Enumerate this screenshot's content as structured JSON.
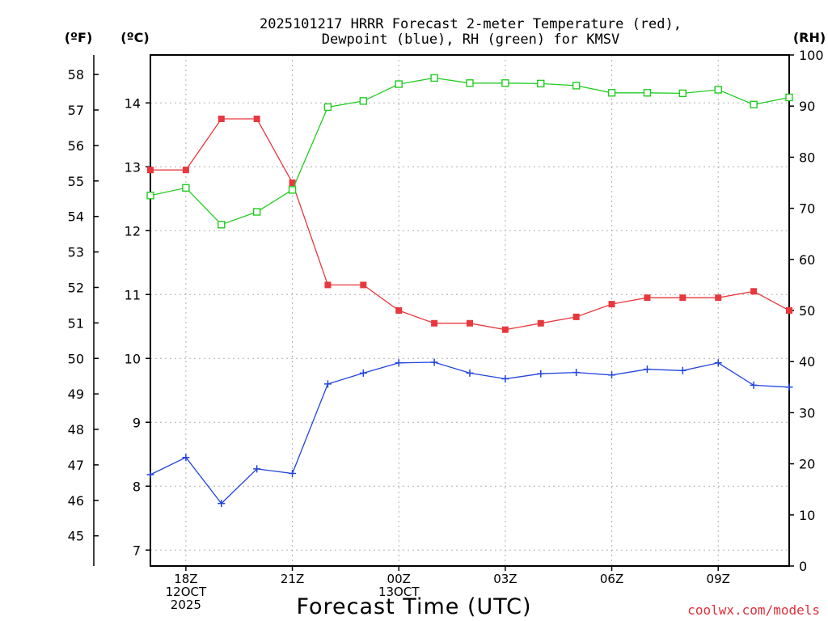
{
  "chart_data": {
    "type": "line",
    "title_line1": "2025101217 HRRR Forecast 2-meter Temperature (red),",
    "title_line2": "Dewpoint (blue), RH (green) for KMSV",
    "left_outer_axis_label": "(ºF)",
    "left_inner_axis_label": "(ºC)",
    "right_axis_label": "(RH)",
    "xlabel": "Forecast Time (UTC)",
    "credit": "coolwx.com/models",
    "x_ticks": [
      {
        "hour": 1,
        "lines": [
          "18Z",
          "12OCT",
          "2025"
        ]
      },
      {
        "hour": 4,
        "lines": [
          "21Z"
        ]
      },
      {
        "hour": 7,
        "lines": [
          "00Z",
          "13OCT"
        ]
      },
      {
        "hour": 10,
        "lines": [
          "03Z"
        ]
      },
      {
        "hour": 13,
        "lines": [
          "06Z"
        ]
      },
      {
        "hour": 16,
        "lines": [
          "09Z"
        ]
      }
    ],
    "x_range": [
      0,
      18
    ],
    "celsius_range": [
      6.75,
      14.75
    ],
    "celsius_ticks": [
      "7",
      "8",
      "9",
      "10",
      "11",
      "12",
      "13",
      "14"
    ],
    "fahrenheit_ticks": [
      "45",
      "46",
      "47",
      "48",
      "49",
      "50",
      "51",
      "52",
      "53",
      "54",
      "55",
      "56",
      "57",
      "58"
    ],
    "rh_range": [
      0,
      100
    ],
    "rh_ticks": [
      "0",
      "10",
      "20",
      "30",
      "40",
      "50",
      "60",
      "70",
      "80",
      "90",
      "100"
    ],
    "colors": {
      "temperature": "#e8383d",
      "dewpoint": "#2244dd",
      "rh": "#22cc22",
      "grid": "#b0b0b0",
      "credit": "#e0303a"
    },
    "series": [
      {
        "name": "Temperature (C)",
        "axis": "celsius",
        "marker": "filled-square",
        "x": [
          0,
          1,
          2,
          3,
          4,
          5,
          6,
          7,
          8,
          9,
          10,
          11,
          12,
          13,
          14,
          15,
          16,
          17,
          18
        ],
        "values": [
          12.95,
          12.95,
          13.75,
          13.75,
          12.75,
          11.15,
          11.15,
          10.75,
          10.55,
          10.55,
          10.45,
          10.55,
          10.65,
          10.85,
          10.95,
          10.95,
          10.95,
          11.05,
          10.75
        ]
      },
      {
        "name": "Dewpoint (C)",
        "axis": "celsius",
        "marker": "plus",
        "x": [
          0,
          1,
          2,
          3,
          4,
          5,
          6,
          7,
          8,
          9,
          10,
          11,
          12,
          13,
          14,
          15,
          16,
          17,
          18
        ],
        "values": [
          8.18,
          8.45,
          7.73,
          8.27,
          8.2,
          9.6,
          9.77,
          9.93,
          9.94,
          9.77,
          9.68,
          9.76,
          9.78,
          9.74,
          9.83,
          9.81,
          9.93,
          9.58,
          9.55
        ]
      },
      {
        "name": "RH (%)",
        "axis": "rh",
        "marker": "open-square",
        "x": [
          0,
          1,
          2,
          3,
          4,
          5,
          6,
          7,
          8,
          9,
          10,
          11,
          12,
          13,
          14,
          15,
          16,
          17,
          18
        ],
        "values": [
          72.5,
          74.0,
          66.8,
          69.3,
          73.6,
          89.8,
          91.0,
          94.3,
          95.5,
          94.5,
          94.5,
          94.4,
          94.0,
          92.6,
          92.6,
          92.5,
          93.2,
          90.3,
          91.7
        ]
      }
    ]
  }
}
